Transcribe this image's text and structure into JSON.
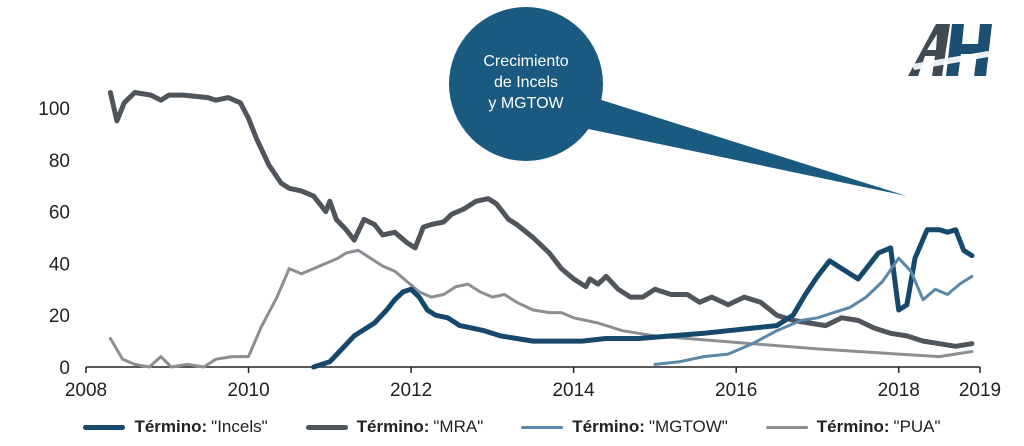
{
  "chart_data": {
    "type": "line",
    "title": "",
    "xlabel": "",
    "ylabel": "",
    "xlim": [
      2008,
      2019
    ],
    "ylim": [
      0,
      100
    ],
    "x_ticks": [
      2008,
      2010,
      2012,
      2014,
      2016,
      2018,
      2019
    ],
    "y_ticks": [
      0,
      20,
      40,
      60,
      80,
      100
    ],
    "legend_prefix": "Término:",
    "annotation": {
      "lines": [
        "Crecimiento",
        "de Incels",
        "y MGTOW"
      ],
      "points_to": [
        2018.1,
        66
      ],
      "color": "#1a5a80"
    },
    "series": [
      {
        "name": "\"MRA\"",
        "color": "#4f555b",
        "width": 5,
        "x": [
          2008.3,
          2008.38,
          2008.47,
          2008.6,
          2008.8,
          2008.92,
          2009.02,
          2009.2,
          2009.5,
          2009.6,
          2009.75,
          2009.9,
          2010.0,
          2010.1,
          2010.25,
          2010.4,
          2010.5,
          2010.65,
          2010.8,
          2010.95,
          2011.0,
          2011.08,
          2011.2,
          2011.3,
          2011.42,
          2011.55,
          2011.65,
          2011.8,
          2011.95,
          2012.05,
          2012.15,
          2012.25,
          2012.4,
          2012.5,
          2012.65,
          2012.8,
          2012.95,
          2013.05,
          2013.2,
          2013.3,
          2013.5,
          2013.7,
          2013.85,
          2014.0,
          2014.15,
          2014.2,
          2014.3,
          2014.4,
          2014.55,
          2014.7,
          2014.85,
          2015.0,
          2015.2,
          2015.4,
          2015.55,
          2015.7,
          2015.9,
          2016.1,
          2016.3,
          2016.5,
          2016.7,
          2016.9,
          2017.1,
          2017.3,
          2017.5,
          2017.7,
          2017.9,
          2018.1,
          2018.3,
          2018.5,
          2018.7,
          2018.9
        ],
        "y": [
          106,
          95,
          102,
          106,
          105,
          103,
          105,
          105,
          104,
          103,
          104,
          102,
          96,
          88,
          78,
          71,
          69,
          68,
          66,
          60,
          64,
          57,
          53,
          49,
          57,
          55,
          51,
          52,
          48,
          46,
          54,
          55,
          56,
          59,
          61,
          64,
          65,
          63,
          57,
          55,
          50,
          44,
          38,
          34,
          31,
          34,
          32,
          35,
          30,
          27,
          27,
          30,
          28,
          28,
          25,
          27,
          24,
          27,
          25,
          20,
          18,
          17,
          16,
          19,
          18,
          15,
          13,
          12,
          10,
          9,
          8,
          9
        ]
      },
      {
        "name": "\"PUA\"",
        "color": "#8b8f93",
        "width": 3,
        "x": [
          2008.3,
          2008.45,
          2008.6,
          2008.78,
          2008.92,
          2009.05,
          2009.25,
          2009.45,
          2009.6,
          2009.8,
          2010.0,
          2010.15,
          2010.35,
          2010.5,
          2010.65,
          2010.8,
          2010.95,
          2011.1,
          2011.2,
          2011.35,
          2011.5,
          2011.65,
          2011.8,
          2011.95,
          2012.1,
          2012.25,
          2012.4,
          2012.55,
          2012.7,
          2012.85,
          2013.0,
          2013.15,
          2013.3,
          2013.5,
          2013.7,
          2013.85,
          2014.0,
          2014.3,
          2014.6,
          2015.0,
          2015.4,
          2015.8,
          2016.2,
          2016.6,
          2017.0,
          2017.5,
          2018.0,
          2018.5,
          2018.9
        ],
        "y": [
          11,
          3,
          1,
          0,
          4,
          0,
          1,
          0,
          3,
          4,
          4,
          15,
          27,
          38,
          36,
          38,
          40,
          42,
          44,
          45,
          42,
          39,
          37,
          33,
          29,
          27,
          28,
          31,
          32,
          29,
          27,
          28,
          25,
          22,
          21,
          21,
          19,
          17,
          14,
          12,
          11,
          10,
          9,
          8,
          7,
          6,
          5,
          4,
          6
        ]
      },
      {
        "name": "\"Incels\"",
        "color": "#16486b",
        "width": 5,
        "x": [
          2010.8,
          2011.0,
          2011.15,
          2011.3,
          2011.4,
          2011.55,
          2011.7,
          2011.8,
          2011.9,
          2012.0,
          2012.1,
          2012.2,
          2012.3,
          2012.45,
          2012.6,
          2012.75,
          2012.9,
          2013.1,
          2013.3,
          2013.5,
          2013.8,
          2014.1,
          2014.4,
          2014.8,
          2015.2,
          2015.6,
          2015.9,
          2016.2,
          2016.5,
          2016.7,
          2016.85,
          2017.0,
          2017.15,
          2017.3,
          2017.5,
          2017.65,
          2017.75,
          2017.9,
          2018.0,
          2018.1,
          2018.2,
          2018.35,
          2018.5,
          2018.6,
          2018.7,
          2018.8,
          2018.9
        ],
        "y": [
          0,
          2,
          7,
          12,
          14,
          17,
          22,
          26,
          29,
          30,
          27,
          22,
          20,
          19,
          16,
          15,
          14,
          12,
          11,
          10,
          10,
          10,
          11,
          11,
          12,
          13,
          14,
          15,
          16,
          20,
          28,
          35,
          41,
          38,
          34,
          40,
          44,
          46,
          22,
          24,
          42,
          53,
          53,
          52,
          53,
          45,
          43
        ]
      },
      {
        "name": "\"MGTOW\"",
        "color": "#5b87a8",
        "width": 3,
        "x": [
          2015.0,
          2015.3,
          2015.6,
          2015.9,
          2016.2,
          2016.5,
          2016.8,
          2017.0,
          2017.2,
          2017.4,
          2017.6,
          2017.8,
          2018.0,
          2018.15,
          2018.3,
          2018.45,
          2018.6,
          2018.75,
          2018.9
        ],
        "y": [
          1,
          2,
          4,
          5,
          9,
          14,
          18,
          19,
          21,
          23,
          27,
          33,
          42,
          37,
          26,
          30,
          28,
          32,
          35
        ]
      }
    ]
  }
}
